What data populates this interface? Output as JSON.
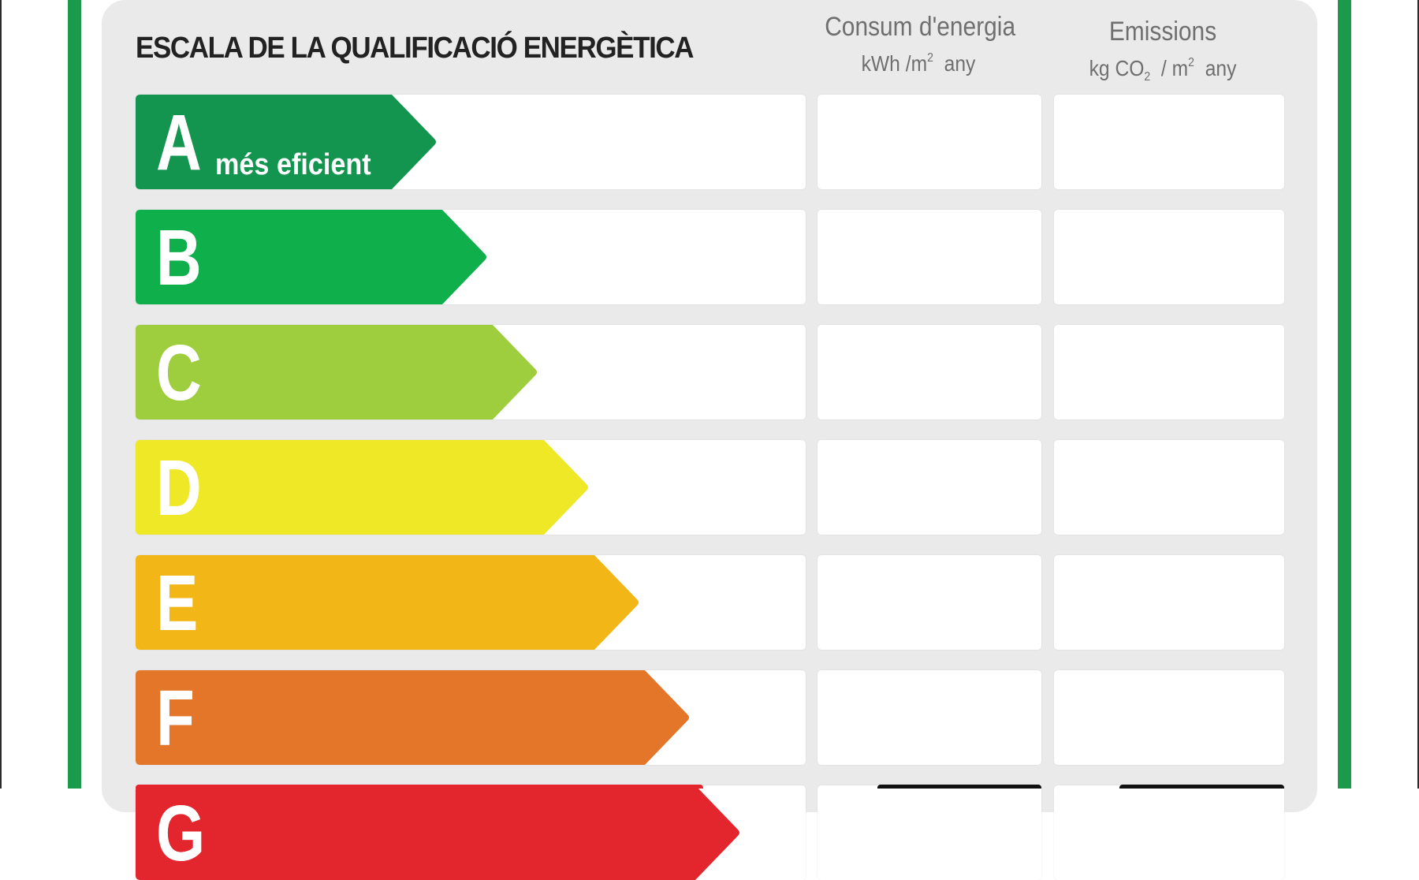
{
  "title": "ESCALA DE LA QUALIFICACIÓ ENERGÈTICA",
  "columns": {
    "energy": {
      "line1": "Consum d'energia",
      "line2_a": "kWh /m",
      "line2_sup": "2",
      "line2_b": "any"
    },
    "emissions": {
      "line1": "Emissions",
      "line2_a": "kg CO",
      "line2_sub": "2",
      "line2_c": "/ m",
      "line2_sup": "2",
      "line2_b": "any"
    }
  },
  "ratings": [
    {
      "letter": "A",
      "label": "més eficient",
      "color": "#13954f"
    },
    {
      "letter": "B",
      "label": "",
      "color": "#0fb04c"
    },
    {
      "letter": "C",
      "label": "",
      "color": "#9ecd3d"
    },
    {
      "letter": "D",
      "label": "",
      "color": "#eee826"
    },
    {
      "letter": "E",
      "label": "",
      "color": "#f2b717"
    },
    {
      "letter": "F",
      "label": "",
      "color": "#e37629"
    },
    {
      "letter": "G",
      "label": "",
      "color": "#e3262d"
    }
  ],
  "border_color": "#1b9a4b",
  "panel_color": "#ebeaeb"
}
